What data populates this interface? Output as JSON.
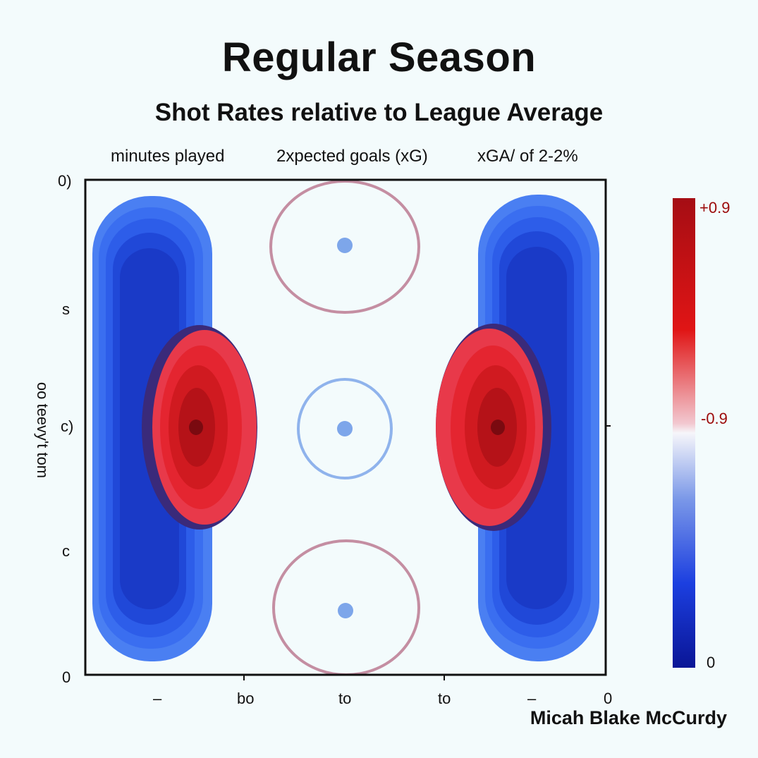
{
  "title": "Regular Season",
  "subtitle": "Shot Rates relative to League Average",
  "stats": [
    "minutes played",
    "2xpected goals (xG)",
    "xGA/ of 2-2%"
  ],
  "credit": "Micah Blake McCurdy",
  "axes": {
    "ylabel": "oo teevy't tom",
    "yticks": [
      "0)",
      "s",
      "c)",
      "c",
      "0"
    ],
    "xticks": [
      "–",
      "bo",
      "to",
      "to",
      "–",
      "0"
    ]
  },
  "colorbar": {
    "top_label": "+0.9",
    "mid_label": "-0.9",
    "bottom_label": "0",
    "colors": [
      "#a50d14",
      "#e01515",
      "#f6f6fa",
      "#1c3fe0",
      "#0a1596"
    ]
  },
  "chart_data": {
    "type": "heatmap",
    "title": "Regular Season",
    "subtitle": "Shot Rates relative to League Average",
    "ylabel": "oo teevy't tom",
    "xtick_labels": [
      "–",
      "bo",
      "to",
      "to",
      "–",
      "0"
    ],
    "ytick_labels": [
      "0)",
      "s",
      "c)",
      "c",
      "0"
    ],
    "grid": false,
    "colorscale": {
      "max_label": "+0.9",
      "mid_label": "-0.9",
      "min_label": "0"
    },
    "regions": [
      {
        "name": "left lane",
        "sign": "below average",
        "value": -0.9
      },
      {
        "name": "left slot",
        "sign": "above average",
        "value": 0.9
      },
      {
        "name": "right lane",
        "sign": "below average",
        "value": -0.9
      },
      {
        "name": "right slot",
        "sign": "above average",
        "value": 0.9
      }
    ]
  }
}
